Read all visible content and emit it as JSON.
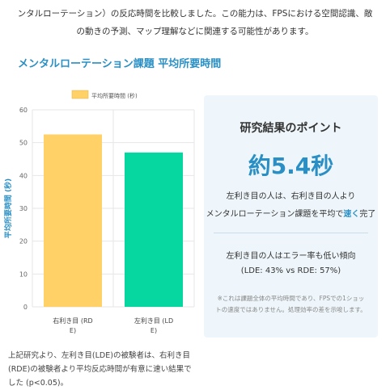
{
  "intro": {
    "line1": "ンタルローテーション）の反応時間を比較しました。この能力は、FPSにおける空間認識、敵",
    "line2": "の動きの予測、マップ理解などに関連する可能性があります。"
  },
  "section_title": "メンタルローテーション課題 平均所要時間",
  "chart_data": {
    "type": "bar",
    "categories": [
      [
        "右利き目 (RD",
        "E)"
      ],
      [
        "左利き目 (LD",
        "E)"
      ]
    ],
    "series": [
      {
        "name": "平均所要時間 (秒)",
        "values": [
          52.5,
          47.0
        ],
        "colors": [
          "#ffd166",
          "#06d6a0"
        ]
      }
    ],
    "ylabel": "平均所要時間 (秒)",
    "ylim": [
      0,
      60
    ],
    "yticks": [
      "0",
      "10",
      "20",
      "30",
      "40",
      "50",
      "60"
    ],
    "grid": true,
    "legend": "top-center"
  },
  "caption": "上記研究より、左利き目(LDE)の被験者は、右利き目(RDE)の被験者より平均反応時間が有意に速い結果でした (p<0.05)。",
  "panel": {
    "title": "研究結果のポイント",
    "big": "約5.4秒",
    "line1": "左利き目の人は、右利き目の人より",
    "line2_prefix": "メンタルローテーション課題を平均で",
    "line2_em": "速く",
    "line2_suffix": "完了",
    "line3": "左利き目の人はエラー率も低い傾向",
    "line4": "(LDE: 43% vs RDE: 57%)",
    "note": "※これは課題全体の平均時間であり、FPSでの1ショットの速度ではありません。処理効率の差を示唆します。"
  }
}
